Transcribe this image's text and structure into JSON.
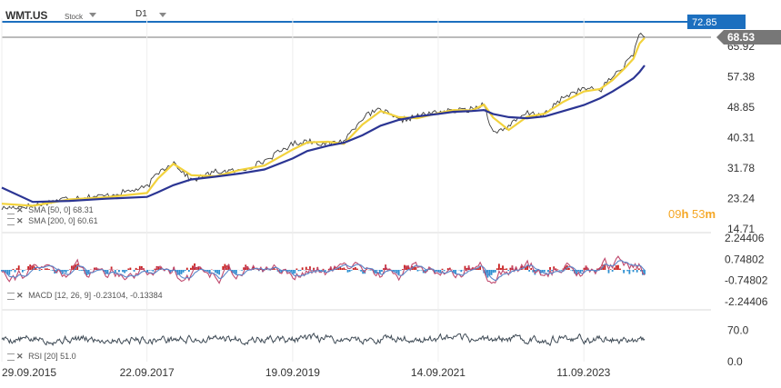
{
  "header": {
    "symbol": "WMT.US",
    "type": "Stock",
    "timeframe": "D1",
    "countdown_hours": "09",
    "countdown_h": "h",
    "countdown_minutes": "53",
    "countdown_m": "m"
  },
  "colors": {
    "price": "#3c3c3c",
    "sma50": "#f2d23c",
    "sma200": "#2b3593",
    "level_line": "#1c6fbf",
    "macd_line": "#c04a6e",
    "signal_line": "#5b86c9",
    "hist_pos": "#c81e1e",
    "hist_neg": "#2b8fd1",
    "rsi": "#3e4a55",
    "timer": "#f5a623"
  },
  "chart_data": [
    {
      "type": "line",
      "title": "WMT.US",
      "x": [
        "2015-09-29",
        "2016-03-01",
        "2016-09-01",
        "2017-03-01",
        "2017-09-22",
        "2017-11-15",
        "2018-02-01",
        "2018-05-01",
        "2018-09-01",
        "2019-01-01",
        "2019-05-01",
        "2019-09-19",
        "2019-12-01",
        "2020-03-15",
        "2020-06-01",
        "2020-09-01",
        "2020-12-01",
        "2021-03-01",
        "2021-06-01",
        "2021-09-14",
        "2021-12-01",
        "2022-03-01",
        "2022-05-01",
        "2022-06-15",
        "2022-09-01",
        "2022-12-01",
        "2023-03-01",
        "2023-06-01",
        "2023-09-11",
        "2023-12-01",
        "2024-02-01",
        "2024-04-01",
        "2024-05-15",
        "2024-06-15",
        "2024-07-10"
      ],
      "series": [
        {
          "name": "Price",
          "values": [
            20.5,
            21.3,
            23.5,
            24.0,
            26.4,
            30.5,
            33.5,
            28.3,
            30.8,
            31.0,
            33.8,
            38.6,
            39.5,
            38.5,
            39.5,
            46.0,
            48.3,
            45.1,
            46.3,
            47.6,
            47.8,
            48.3,
            49.9,
            41.5,
            43.6,
            47.2,
            46.8,
            51.8,
            54.1,
            53.7,
            57.5,
            60.6,
            64.0,
            69.6,
            68.53
          ]
        },
        {
          "name": "SMA 50",
          "values": [
            21.8,
            21.2,
            23.0,
            23.6,
            24.8,
            28.8,
            33.0,
            29.8,
            29.5,
            31.3,
            32.5,
            37.0,
            39.0,
            39.2,
            38.6,
            44.0,
            47.8,
            46.1,
            45.8,
            47.2,
            48.1,
            48.0,
            49.6,
            46.0,
            42.5,
            46.2,
            47.1,
            50.4,
            53.3,
            54.0,
            56.5,
            59.8,
            62.5,
            66.8,
            68.31
          ]
        },
        {
          "name": "SMA 200",
          "values": [
            26.3,
            22.3,
            22.6,
            23.2,
            23.7,
            25.0,
            27.0,
            28.6,
            29.4,
            30.3,
            31.4,
            34.5,
            36.6,
            38.1,
            38.9,
            41.0,
            43.7,
            45.3,
            46.3,
            47.0,
            47.6,
            47.8,
            48.1,
            47.0,
            46.1,
            45.8,
            46.3,
            47.8,
            49.5,
            51.4,
            53.3,
            55.4,
            57.0,
            58.8,
            60.61
          ]
        }
      ],
      "yticks": [
        "72.85",
        "68.53",
        "65.92",
        "57.38",
        "48.85",
        "40.31",
        "31.78",
        "23.24",
        "14.71"
      ],
      "ylim": [
        14.71,
        72.85
      ],
      "last_price": "68.53",
      "level_label": "72.85",
      "level_overlap_label": "65.92",
      "xticks": [
        "29.09.2015",
        "22.09.2017",
        "19.09.2019",
        "14.09.2021",
        "11.09.2023"
      ]
    },
    {
      "type": "line",
      "legend": {
        "prefix": "MACD",
        "params": "[12, 26, 9]",
        "values": "-0.23104, -0.13384"
      },
      "yticks": [
        "2.24406",
        "0.74802",
        "-0.74802",
        "-2.24406"
      ],
      "ylim": [
        -2.24406,
        2.24406
      ]
    },
    {
      "type": "line",
      "legend": {
        "prefix": "RSI",
        "params": "[20]",
        "values": "51.0"
      },
      "yticks": [
        "70.0",
        "0.0"
      ],
      "ylim": [
        0,
        100
      ]
    }
  ],
  "legends": {
    "sma50": {
      "label": "SMA",
      "params": "[50, 0]",
      "value": "68.31"
    },
    "sma200": {
      "label": "SMA",
      "params": "[200, 0]",
      "value": "60.61"
    }
  }
}
